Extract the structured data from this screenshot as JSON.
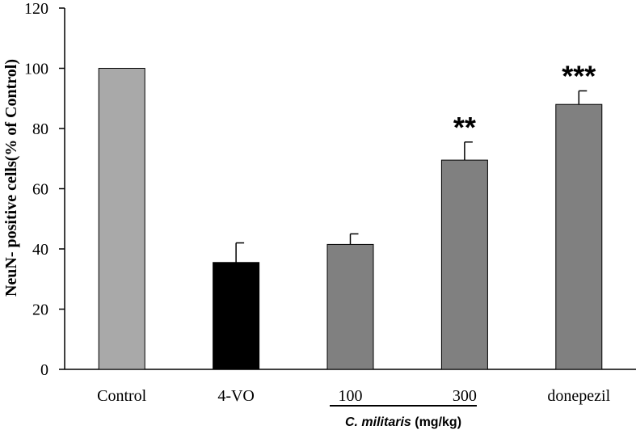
{
  "chart_data": {
    "type": "bar",
    "title": "",
    "xlabel": "",
    "ylabel": "NeuN- positive cells(% of Control)",
    "ylim": [
      0,
      120
    ],
    "yticks": [
      0,
      20,
      40,
      60,
      80,
      100,
      120
    ],
    "categories": [
      "Control",
      "4-VO",
      "100",
      "300",
      "donepezil"
    ],
    "values": [
      100,
      35.5,
      41.5,
      69.5,
      88
    ],
    "errors": [
      0,
      6.5,
      3.5,
      6,
      4.5
    ],
    "significance": [
      "",
      "",
      "",
      "**",
      "***"
    ],
    "bar_colors": [
      "#a9a9a9",
      "#000000",
      "#808080",
      "#808080",
      "#808080"
    ],
    "group_label": {
      "italic": "C. militaris",
      "normal": " (mg/kg)",
      "spans": [
        "100",
        "300"
      ]
    },
    "grid": false
  }
}
